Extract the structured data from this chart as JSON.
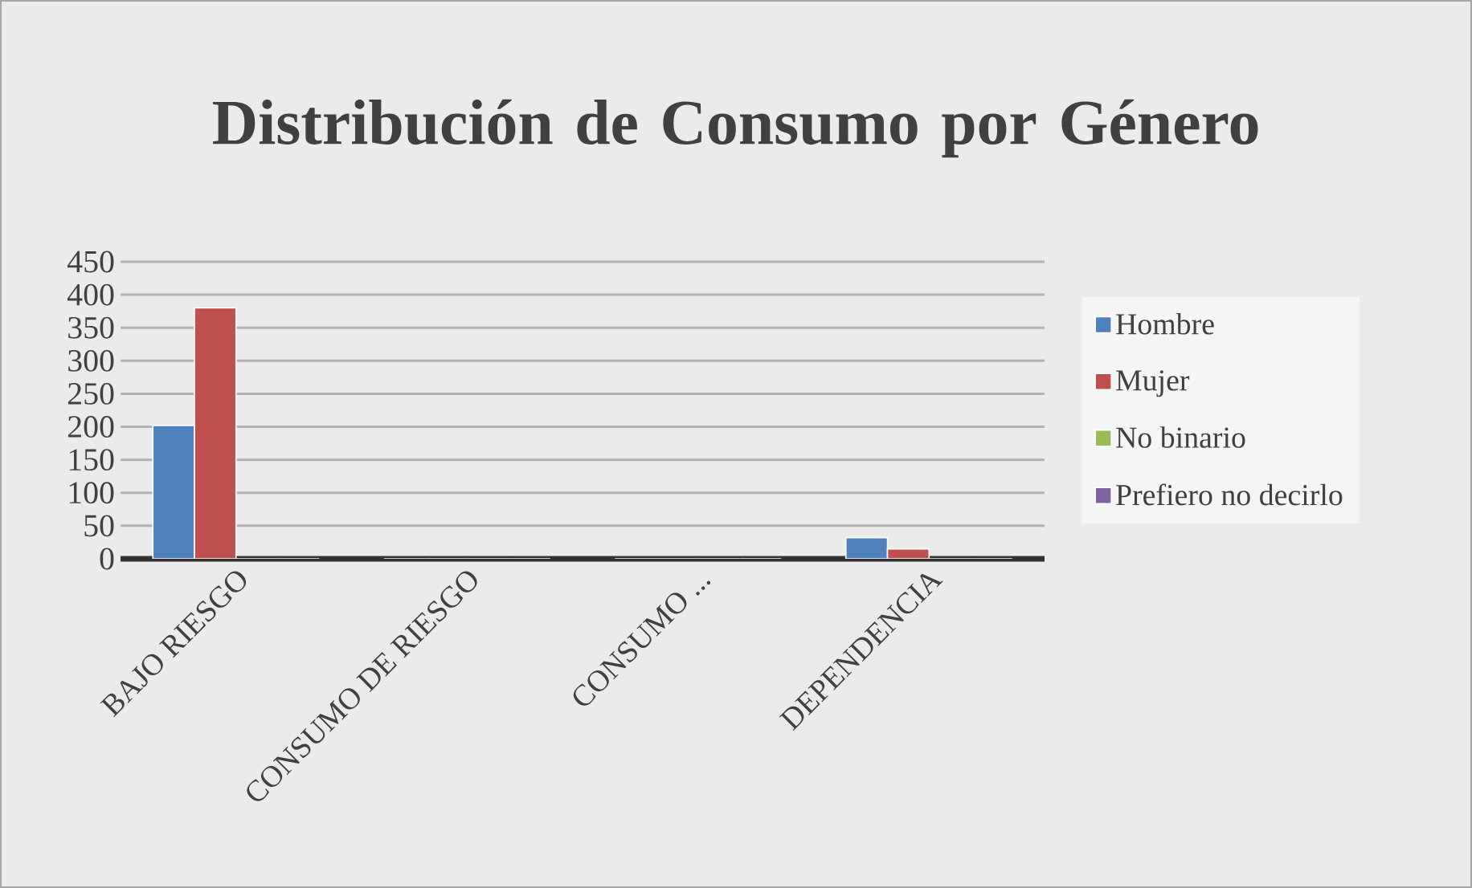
{
  "chart_data": {
    "type": "bar",
    "title": "Distribución de Consumo por Género",
    "categories": [
      "BAJO RIESGO",
      "CONSUMO DE RIESGO",
      "CONSUMO ...",
      "DEPENDENCIA"
    ],
    "series": [
      {
        "name": "Hombre",
        "color": "#4f81bd",
        "values": [
          202,
          0,
          0,
          32
        ]
      },
      {
        "name": "Mujer",
        "color": "#c0504d",
        "values": [
          380,
          0,
          0,
          15
        ]
      },
      {
        "name": "No binario",
        "color": "#9bbb59",
        "values": [
          0,
          0,
          0,
          0
        ]
      },
      {
        "name": "Prefiero no decirlo",
        "color": "#8064a2",
        "values": [
          0,
          0,
          0,
          0
        ]
      }
    ],
    "ylim": [
      0,
      450
    ],
    "yticks": [
      0,
      50,
      100,
      150,
      200,
      250,
      300,
      350,
      400,
      450
    ],
    "grid": "y",
    "legend": "right"
  }
}
